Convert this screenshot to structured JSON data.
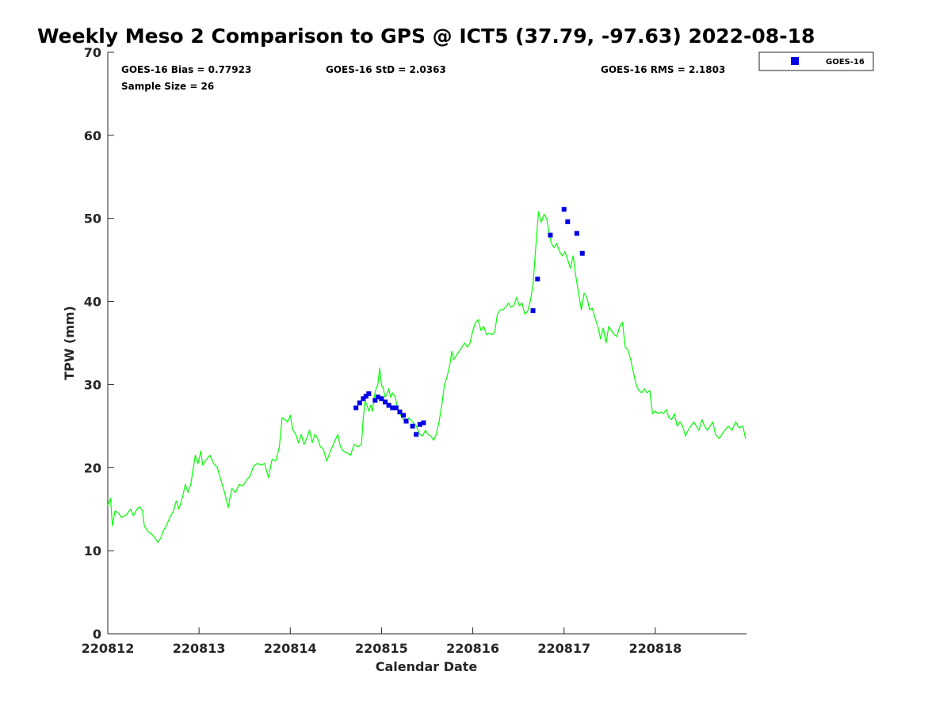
{
  "chart_data": {
    "type": "line",
    "title": "Weekly Meso 2 Comparison to GPS @ ICT5 (37.79, -97.63) 2022-08-18",
    "xlabel": "Calendar Date",
    "ylabel": "TPW (mm)",
    "xlim": [
      0,
      7
    ],
    "ylim": [
      0,
      70
    ],
    "x_ticks": [
      0,
      1,
      2,
      3,
      4,
      5,
      6
    ],
    "x_tick_labels": [
      "220812",
      "220813",
      "220814",
      "220815",
      "220816",
      "220817",
      "220818"
    ],
    "y_ticks": [
      0,
      10,
      20,
      30,
      40,
      50,
      60,
      70
    ],
    "y_tick_labels": [
      "0",
      "10",
      "20",
      "30",
      "40",
      "50",
      "60",
      "70"
    ],
    "grid": false,
    "legend_position": "top-right",
    "stats": {
      "bias": "GOES-16 Bias = 0.77923",
      "std": "GOES-16 StD = 2.0363",
      "rms": "GOES-16 RMS = 2.1803",
      "sample_size": "Sample Size = 26"
    },
    "series": [
      {
        "kind": "line",
        "color": "#00ff00",
        "points": [
          [
            0.0,
            15.5
          ],
          [
            0.03,
            16.3
          ],
          [
            0.05,
            13.0
          ],
          [
            0.08,
            14.8
          ],
          [
            0.12,
            14.5
          ],
          [
            0.15,
            14.0
          ],
          [
            0.2,
            14.3
          ],
          [
            0.25,
            15.0
          ],
          [
            0.28,
            14.2
          ],
          [
            0.32,
            15.0
          ],
          [
            0.35,
            15.3
          ],
          [
            0.38,
            14.8
          ],
          [
            0.4,
            13.0
          ],
          [
            0.44,
            12.3
          ],
          [
            0.48,
            12.0
          ],
          [
            0.52,
            11.5
          ],
          [
            0.55,
            11.0
          ],
          [
            0.58,
            11.5
          ],
          [
            0.6,
            12.2
          ],
          [
            0.64,
            13.0
          ],
          [
            0.68,
            14.0
          ],
          [
            0.72,
            14.8
          ],
          [
            0.75,
            16.0
          ],
          [
            0.78,
            15.0
          ],
          [
            0.82,
            16.5
          ],
          [
            0.85,
            18.0
          ],
          [
            0.88,
            17.0
          ],
          [
            0.91,
            18.0
          ],
          [
            0.93,
            19.5
          ],
          [
            0.96,
            21.5
          ],
          [
            0.99,
            20.5
          ],
          [
            1.02,
            22.0
          ],
          [
            1.04,
            20.3
          ],
          [
            1.08,
            21.0
          ],
          [
            1.12,
            21.5
          ],
          [
            1.16,
            20.5
          ],
          [
            1.2,
            20.0
          ],
          [
            1.24,
            18.5
          ],
          [
            1.28,
            17.0
          ],
          [
            1.32,
            15.2
          ],
          [
            1.36,
            17.5
          ],
          [
            1.4,
            17.0
          ],
          [
            1.44,
            18.0
          ],
          [
            1.48,
            17.8
          ],
          [
            1.52,
            18.5
          ],
          [
            1.56,
            19.0
          ],
          [
            1.6,
            20.2
          ],
          [
            1.64,
            20.5
          ],
          [
            1.68,
            20.3
          ],
          [
            1.72,
            20.5
          ],
          [
            1.76,
            18.8
          ],
          [
            1.8,
            21.0
          ],
          [
            1.84,
            20.8
          ],
          [
            1.88,
            22.5
          ],
          [
            1.91,
            26.0
          ],
          [
            1.94,
            25.8
          ],
          [
            1.97,
            25.5
          ],
          [
            2.0,
            26.3
          ],
          [
            2.03,
            24.5
          ],
          [
            2.06,
            24.0
          ],
          [
            2.09,
            23.0
          ],
          [
            2.12,
            24.0
          ],
          [
            2.15,
            22.8
          ],
          [
            2.18,
            23.5
          ],
          [
            2.21,
            24.5
          ],
          [
            2.24,
            23.0
          ],
          [
            2.27,
            24.0
          ],
          [
            2.3,
            23.5
          ],
          [
            2.33,
            22.5
          ],
          [
            2.36,
            22.3
          ],
          [
            2.4,
            20.8
          ],
          [
            2.44,
            22.0
          ],
          [
            2.48,
            23.0
          ],
          [
            2.52,
            24.0
          ],
          [
            2.55,
            22.5
          ],
          [
            2.58,
            22.0
          ],
          [
            2.62,
            21.8
          ],
          [
            2.66,
            21.5
          ],
          [
            2.7,
            22.8
          ],
          [
            2.74,
            22.5
          ],
          [
            2.78,
            22.8
          ],
          [
            2.8,
            26.0
          ],
          [
            2.82,
            28.0
          ],
          [
            2.84,
            27.5
          ],
          [
            2.86,
            26.8
          ],
          [
            2.88,
            27.5
          ],
          [
            2.9,
            26.8
          ],
          [
            2.92,
            28.5
          ],
          [
            2.94,
            29.5
          ],
          [
            2.96,
            30.0
          ],
          [
            2.98,
            32.0
          ],
          [
            3.0,
            30.0
          ],
          [
            3.02,
            29.5
          ],
          [
            3.04,
            28.5
          ],
          [
            3.06,
            28.8
          ],
          [
            3.08,
            29.5
          ],
          [
            3.1,
            28.5
          ],
          [
            3.12,
            29.0
          ],
          [
            3.15,
            28.5
          ],
          [
            3.18,
            27.0
          ],
          [
            3.2,
            26.5
          ],
          [
            3.23,
            26.0
          ],
          [
            3.26,
            25.5
          ],
          [
            3.3,
            26.0
          ],
          [
            3.34,
            25.5
          ],
          [
            3.38,
            25.0
          ],
          [
            3.42,
            24.0
          ],
          [
            3.45,
            23.8
          ],
          [
            3.48,
            24.5
          ],
          [
            3.51,
            24.0
          ],
          [
            3.54,
            23.8
          ],
          [
            3.57,
            23.3
          ],
          [
            3.6,
            24.0
          ],
          [
            3.63,
            25.5
          ],
          [
            3.66,
            27.5
          ],
          [
            3.69,
            30.0
          ],
          [
            3.72,
            31.0
          ],
          [
            3.75,
            32.5
          ],
          [
            3.77,
            34.0
          ],
          [
            3.79,
            33.0
          ],
          [
            3.82,
            33.5
          ],
          [
            3.85,
            34.0
          ],
          [
            3.88,
            34.5
          ],
          [
            3.91,
            35.0
          ],
          [
            3.94,
            34.5
          ],
          [
            3.97,
            35.0
          ],
          [
            4.0,
            36.5
          ],
          [
            4.03,
            37.5
          ],
          [
            4.06,
            37.8
          ],
          [
            4.09,
            36.5
          ],
          [
            4.12,
            37.0
          ],
          [
            4.15,
            36.0
          ],
          [
            4.18,
            36.2
          ],
          [
            4.21,
            36.0
          ],
          [
            4.24,
            36.3
          ],
          [
            4.27,
            38.5
          ],
          [
            4.3,
            39.0
          ],
          [
            4.33,
            39.0
          ],
          [
            4.36,
            39.3
          ],
          [
            4.39,
            39.8
          ],
          [
            4.42,
            39.3
          ],
          [
            4.45,
            39.5
          ],
          [
            4.48,
            40.5
          ],
          [
            4.51,
            39.5
          ],
          [
            4.54,
            39.8
          ],
          [
            4.57,
            38.5
          ],
          [
            4.6,
            38.8
          ],
          [
            4.63,
            40.0
          ],
          [
            4.66,
            42.0
          ],
          [
            4.69,
            46.5
          ],
          [
            4.72,
            50.8
          ],
          [
            4.75,
            49.5
          ],
          [
            4.78,
            50.5
          ],
          [
            4.81,
            50.0
          ],
          [
            4.84,
            48.0
          ],
          [
            4.86,
            47.0
          ],
          [
            4.89,
            46.5
          ],
          [
            4.92,
            47.0
          ],
          [
            4.95,
            46.0
          ],
          [
            4.98,
            45.5
          ],
          [
            5.01,
            46.0
          ],
          [
            5.04,
            45.0
          ],
          [
            5.07,
            44.0
          ],
          [
            5.1,
            45.5
          ],
          [
            5.13,
            43.0
          ],
          [
            5.16,
            41.0
          ],
          [
            5.19,
            39.0
          ],
          [
            5.22,
            41.0
          ],
          [
            5.25,
            40.5
          ],
          [
            5.28,
            39.0
          ],
          [
            5.31,
            39.2
          ],
          [
            5.34,
            38.0
          ],
          [
            5.37,
            37.0
          ],
          [
            5.4,
            35.5
          ],
          [
            5.43,
            36.8
          ],
          [
            5.46,
            35.0
          ],
          [
            5.49,
            37.0
          ],
          [
            5.52,
            36.5
          ],
          [
            5.55,
            36.0
          ],
          [
            5.58,
            35.8
          ],
          [
            5.61,
            37.0
          ],
          [
            5.64,
            37.5
          ],
          [
            5.67,
            34.5
          ],
          [
            5.7,
            34.2
          ],
          [
            5.73,
            33.0
          ],
          [
            5.76,
            31.5
          ],
          [
            5.79,
            30.0
          ],
          [
            5.82,
            29.3
          ],
          [
            5.85,
            29.0
          ],
          [
            5.88,
            29.5
          ],
          [
            5.91,
            29.0
          ],
          [
            5.94,
            29.3
          ],
          [
            5.97,
            26.5
          ],
          [
            6.0,
            26.8
          ],
          [
            6.03,
            26.5
          ],
          [
            6.06,
            26.7
          ],
          [
            6.09,
            26.5
          ],
          [
            6.12,
            27.0
          ],
          [
            6.15,
            26.0
          ],
          [
            6.18,
            25.8
          ],
          [
            6.21,
            26.5
          ],
          [
            6.24,
            25.0
          ],
          [
            6.27,
            25.5
          ],
          [
            6.3,
            25.0
          ],
          [
            6.33,
            23.8
          ],
          [
            6.36,
            24.5
          ],
          [
            6.39,
            25.0
          ],
          [
            6.42,
            25.5
          ],
          [
            6.45,
            25.0
          ],
          [
            6.48,
            24.5
          ],
          [
            6.51,
            25.8
          ],
          [
            6.54,
            25.0
          ],
          [
            6.57,
            24.5
          ],
          [
            6.6,
            25.0
          ],
          [
            6.63,
            25.5
          ],
          [
            6.66,
            24.0
          ],
          [
            6.7,
            23.5
          ],
          [
            6.73,
            24.0
          ],
          [
            6.76,
            24.5
          ],
          [
            6.8,
            25.0
          ],
          [
            6.84,
            24.5
          ],
          [
            6.88,
            25.5
          ],
          [
            6.92,
            24.8
          ],
          [
            6.96,
            25.0
          ],
          [
            6.99,
            23.5
          ]
        ]
      },
      {
        "kind": "scatter",
        "name": "GOES-16",
        "color": "#0000e6",
        "points": [
          [
            2.72,
            27.2
          ],
          [
            2.76,
            27.8
          ],
          [
            2.8,
            28.3
          ],
          [
            2.83,
            28.6
          ],
          [
            2.86,
            28.9
          ],
          [
            2.93,
            28.1
          ],
          [
            2.96,
            28.5
          ],
          [
            3.0,
            28.3
          ],
          [
            3.04,
            27.9
          ],
          [
            3.08,
            27.5
          ],
          [
            3.12,
            27.2
          ],
          [
            3.16,
            27.2
          ],
          [
            3.2,
            26.7
          ],
          [
            3.24,
            26.3
          ],
          [
            3.27,
            25.6
          ],
          [
            3.34,
            25.0
          ],
          [
            3.38,
            24.0
          ],
          [
            3.42,
            25.2
          ],
          [
            3.46,
            25.4
          ],
          [
            4.66,
            38.9
          ],
          [
            4.71,
            42.7
          ],
          [
            4.85,
            48.0
          ],
          [
            5.0,
            51.1
          ],
          [
            5.04,
            49.6
          ],
          [
            5.14,
            48.2
          ],
          [
            5.2,
            45.8
          ]
        ]
      }
    ]
  }
}
